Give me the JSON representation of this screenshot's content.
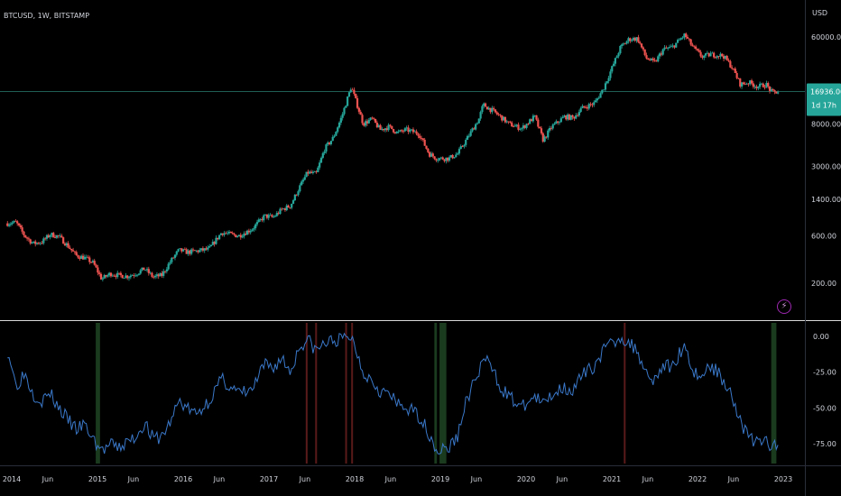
{
  "symbol_info": "BTCUSD, 1W, BITSTAMP",
  "currency": "USD",
  "last_price": "16936.00",
  "countdown": "1d 17h",
  "lightning_icon": "lightning-icon",
  "colors": {
    "background": "#000000",
    "up_candle": "#26a69a",
    "down_candle": "#ef5350",
    "oscillator_line": "#3a78c9",
    "bottom_zone": "#1b3b1e",
    "top_zone": "#5a1a1a",
    "price_line": "#1e5e54",
    "axis_text": "#d1d4dc"
  },
  "chart_data": [
    {
      "type": "candlestick",
      "title": "BTCUSD, 1W, BITSTAMP",
      "scale": "log",
      "y_ticks": [
        200,
        600,
        1400,
        3000,
        8000,
        60000
      ],
      "y_tick_labels": [
        "200.00",
        "600.00",
        "1400.00",
        "3000.00",
        "8000.00",
        "60000.00"
      ],
      "x_tick_labels": [
        "2014",
        "Jun",
        "2015",
        "Jun",
        "2016",
        "Jun",
        "2017",
        "Jun",
        "2018",
        "Jun",
        "2019",
        "Jun",
        "2020",
        "Jun",
        "2021",
        "Jun",
        "2022",
        "Jun",
        "2023"
      ],
      "x_tick_times": [
        2014.0,
        2014.42,
        2015.0,
        2015.42,
        2016.0,
        2016.42,
        2017.0,
        2017.42,
        2018.0,
        2018.42,
        2019.0,
        2019.42,
        2020.0,
        2020.42,
        2021.0,
        2021.42,
        2022.0,
        2022.42,
        2023.0
      ],
      "last_price": 16936,
      "price_path": [
        [
          2013.95,
          800
        ],
        [
          2014.05,
          820
        ],
        [
          2014.15,
          600
        ],
        [
          2014.25,
          500
        ],
        [
          2014.35,
          520
        ],
        [
          2014.45,
          620
        ],
        [
          2014.55,
          590
        ],
        [
          2014.65,
          480
        ],
        [
          2014.75,
          380
        ],
        [
          2014.85,
          360
        ],
        [
          2014.95,
          320
        ],
        [
          2015.05,
          220
        ],
        [
          2015.15,
          250
        ],
        [
          2015.25,
          240
        ],
        [
          2015.35,
          235
        ],
        [
          2015.45,
          250
        ],
        [
          2015.55,
          280
        ],
        [
          2015.65,
          230
        ],
        [
          2015.75,
          240
        ],
        [
          2015.85,
          330
        ],
        [
          2015.95,
          430
        ],
        [
          2016.05,
          410
        ],
        [
          2016.15,
          420
        ],
        [
          2016.3,
          440
        ],
        [
          2016.45,
          650
        ],
        [
          2016.55,
          620
        ],
        [
          2016.65,
          600
        ],
        [
          2016.8,
          700
        ],
        [
          2016.95,
          950
        ],
        [
          2017.05,
          920
        ],
        [
          2017.15,
          1100
        ],
        [
          2017.25,
          1200
        ],
        [
          2017.35,
          1800
        ],
        [
          2017.45,
          2600
        ],
        [
          2017.55,
          2500
        ],
        [
          2017.65,
          4500
        ],
        [
          2017.75,
          5800
        ],
        [
          2017.85,
          9500
        ],
        [
          2017.96,
          19000
        ],
        [
          2018.05,
          11000
        ],
        [
          2018.1,
          8000
        ],
        [
          2018.2,
          9000
        ],
        [
          2018.3,
          7000
        ],
        [
          2018.4,
          7500
        ],
        [
          2018.5,
          6500
        ],
        [
          2018.6,
          7000
        ],
        [
          2018.75,
          6400
        ],
        [
          2018.87,
          4000
        ],
        [
          2018.96,
          3600
        ],
        [
          2019.1,
          3600
        ],
        [
          2019.2,
          4000
        ],
        [
          2019.3,
          5500
        ],
        [
          2019.45,
          9000
        ],
        [
          2019.5,
          12500
        ],
        [
          2019.6,
          11000
        ],
        [
          2019.7,
          9500
        ],
        [
          2019.8,
          8000
        ],
        [
          2019.95,
          7200
        ],
        [
          2020.1,
          9500
        ],
        [
          2020.2,
          5500
        ],
        [
          2020.3,
          7500
        ],
        [
          2020.45,
          9500
        ],
        [
          2020.55,
          9200
        ],
        [
          2020.65,
          11500
        ],
        [
          2020.8,
          13000
        ],
        [
          2020.9,
          18000
        ],
        [
          2021.0,
          29000
        ],
        [
          2021.1,
          47000
        ],
        [
          2021.2,
          57000
        ],
        [
          2021.3,
          58000
        ],
        [
          2021.4,
          37000
        ],
        [
          2021.5,
          33000
        ],
        [
          2021.6,
          45000
        ],
        [
          2021.7,
          47000
        ],
        [
          2021.85,
          63000
        ],
        [
          2021.95,
          47000
        ],
        [
          2022.05,
          38000
        ],
        [
          2022.15,
          40000
        ],
        [
          2022.3,
          39000
        ],
        [
          2022.4,
          30000
        ],
        [
          2022.5,
          20000
        ],
        [
          2022.6,
          21000
        ],
        [
          2022.7,
          19000
        ],
        [
          2022.8,
          20000
        ],
        [
          2022.87,
          16500
        ],
        [
          2022.95,
          16936
        ]
      ]
    },
    {
      "type": "line",
      "y_ticks": [
        0,
        -25,
        -50,
        -75
      ],
      "y_tick_labels": [
        "0.00",
        "-25.00",
        "-50.00",
        "-75.00"
      ],
      "ylim": [
        -95,
        5
      ],
      "series_path": [
        [
          2013.95,
          -10
        ],
        [
          2014.0,
          -20
        ],
        [
          2014.05,
          -35
        ],
        [
          2014.15,
          -25
        ],
        [
          2014.25,
          -40
        ],
        [
          2014.35,
          -45
        ],
        [
          2014.45,
          -40
        ],
        [
          2014.55,
          -50
        ],
        [
          2014.65,
          -58
        ],
        [
          2014.75,
          -65
        ],
        [
          2014.85,
          -62
        ],
        [
          2014.95,
          -72
        ],
        [
          2015.05,
          -80
        ],
        [
          2015.15,
          -76
        ],
        [
          2015.25,
          -78
        ],
        [
          2015.35,
          -74
        ],
        [
          2015.45,
          -70
        ],
        [
          2015.55,
          -60
        ],
        [
          2015.65,
          -72
        ],
        [
          2015.75,
          -70
        ],
        [
          2015.85,
          -60
        ],
        [
          2015.95,
          -45
        ],
        [
          2016.05,
          -50
        ],
        [
          2016.15,
          -55
        ],
        [
          2016.3,
          -45
        ],
        [
          2016.45,
          -30
        ],
        [
          2016.55,
          -35
        ],
        [
          2016.65,
          -40
        ],
        [
          2016.8,
          -38
        ],
        [
          2016.95,
          -20
        ],
        [
          2017.05,
          -22
        ],
        [
          2017.15,
          -15
        ],
        [
          2017.25,
          -25
        ],
        [
          2017.35,
          -8
        ],
        [
          2017.45,
          -2
        ],
        [
          2017.55,
          -10
        ],
        [
          2017.65,
          -5
        ],
        [
          2017.75,
          -3
        ],
        [
          2017.85,
          -2
        ],
        [
          2017.96,
          0
        ],
        [
          2018.05,
          -15
        ],
        [
          2018.1,
          -25
        ],
        [
          2018.2,
          -30
        ],
        [
          2018.3,
          -38
        ],
        [
          2018.4,
          -40
        ],
        [
          2018.5,
          -48
        ],
        [
          2018.6,
          -50
        ],
        [
          2018.75,
          -55
        ],
        [
          2018.87,
          -68
        ],
        [
          2018.96,
          -80
        ],
        [
          2019.1,
          -78
        ],
        [
          2019.2,
          -70
        ],
        [
          2019.3,
          -45
        ],
        [
          2019.45,
          -25
        ],
        [
          2019.5,
          -15
        ],
        [
          2019.6,
          -22
        ],
        [
          2019.7,
          -35
        ],
        [
          2019.8,
          -42
        ],
        [
          2019.95,
          -50
        ],
        [
          2020.1,
          -42
        ],
        [
          2020.2,
          -48
        ],
        [
          2020.3,
          -40
        ],
        [
          2020.45,
          -35
        ],
        [
          2020.55,
          -38
        ],
        [
          2020.65,
          -28
        ],
        [
          2020.8,
          -20
        ],
        [
          2020.9,
          -10
        ],
        [
          2021.0,
          -5
        ],
        [
          2021.1,
          0
        ],
        [
          2021.2,
          -5
        ],
        [
          2021.3,
          -10
        ],
        [
          2021.4,
          -25
        ],
        [
          2021.5,
          -30
        ],
        [
          2021.6,
          -20
        ],
        [
          2021.7,
          -22
        ],
        [
          2021.85,
          -5
        ],
        [
          2021.95,
          -25
        ],
        [
          2022.05,
          -28
        ],
        [
          2022.15,
          -20
        ],
        [
          2022.3,
          -30
        ],
        [
          2022.4,
          -40
        ],
        [
          2022.5,
          -60
        ],
        [
          2022.6,
          -70
        ],
        [
          2022.7,
          -75
        ],
        [
          2022.8,
          -72
        ],
        [
          2022.87,
          -78
        ],
        [
          2022.95,
          -77
        ]
      ],
      "bottom_zones": [
        [
          2014.98,
          2015.03
        ],
        [
          2018.93,
          2018.96
        ],
        [
          2018.99,
          2019.07
        ],
        [
          2022.86,
          2022.92
        ]
      ],
      "top_zones": [
        [
          2017.43,
          2017.45
        ],
        [
          2017.54,
          2017.56
        ],
        [
          2017.89,
          2017.91
        ],
        [
          2017.96,
          2017.98
        ],
        [
          2021.14,
          2021.15
        ]
      ]
    }
  ]
}
